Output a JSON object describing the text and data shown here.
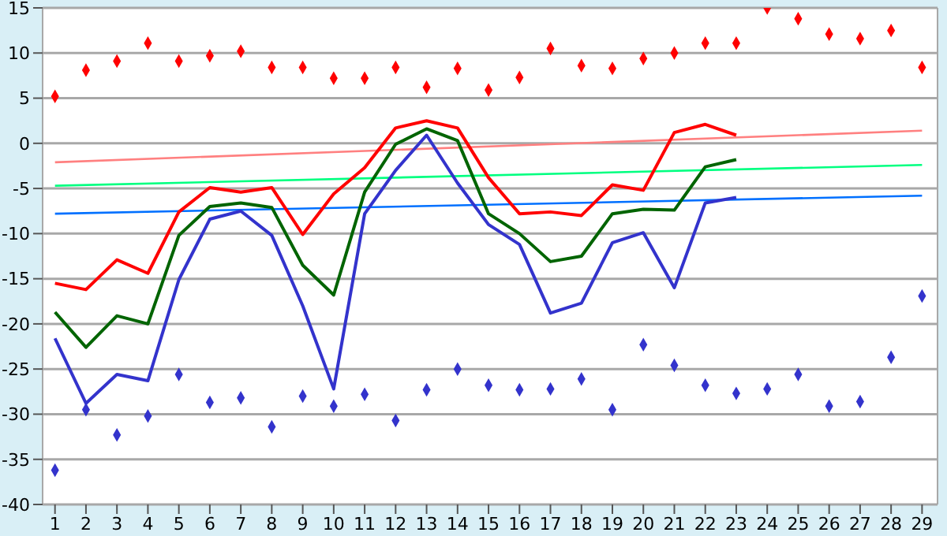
{
  "chart_data": {
    "type": "line",
    "x": [
      1,
      2,
      3,
      4,
      5,
      6,
      7,
      8,
      9,
      10,
      11,
      12,
      13,
      14,
      15,
      16,
      17,
      18,
      19,
      20,
      21,
      22,
      23,
      24,
      25,
      26,
      27,
      28,
      29
    ],
    "xlim": [
      0.6,
      29.5
    ],
    "xticks": [
      1,
      2,
      3,
      4,
      5,
      6,
      7,
      8,
      9,
      10,
      11,
      12,
      13,
      14,
      15,
      16,
      17,
      18,
      19,
      20,
      21,
      22,
      23,
      24,
      25,
      26,
      27,
      28,
      29
    ],
    "ylim": [
      -40,
      15
    ],
    "yticks": [
      -40,
      -35,
      -30,
      -25,
      -20,
      -15,
      -10,
      -5,
      0,
      5,
      10,
      15
    ],
    "grid": "y",
    "marker": "none",
    "line_style": "solid",
    "series": [
      {
        "type": "scatter",
        "marker": "diamond",
        "color": "#ff0000",
        "values": [
          5.2,
          8.1,
          9.1,
          11.1,
          9.1,
          9.7,
          10.2,
          8.4,
          8.4,
          7.2,
          7.2,
          8.4,
          6.2,
          8.3,
          5.9,
          7.3,
          10.5,
          8.6,
          8.3,
          9.4,
          10.0,
          11.1,
          11.1,
          15.0,
          13.8,
          12.1,
          11.6,
          12.5,
          8.4
        ]
      },
      {
        "type": "scatter",
        "marker": "diamond",
        "color": "#3333cc",
        "values": [
          -36.2,
          -29.5,
          -32.3,
          -30.2,
          -25.6,
          -28.7,
          -28.2,
          -31.4,
          -28.0,
          -29.1,
          -27.8,
          -30.7,
          -27.3,
          -25.0,
          -26.8,
          -27.3,
          -27.2,
          -26.1,
          -29.5,
          -22.3,
          -24.6,
          -26.8,
          -27.7,
          -27.2,
          -25.6,
          -29.1,
          -28.6,
          -23.7,
          -16.9
        ]
      },
      {
        "type": "line",
        "color": "#ff8080",
        "values": [
          -2.1,
          null,
          null,
          null,
          null,
          null,
          null,
          null,
          null,
          null,
          null,
          null,
          null,
          null,
          null,
          null,
          null,
          null,
          null,
          null,
          null,
          null,
          null,
          null,
          null,
          null,
          null,
          null,
          1.4
        ]
      },
      {
        "type": "line",
        "color": "#00ff80",
        "values": [
          -4.7,
          null,
          null,
          null,
          null,
          null,
          null,
          null,
          null,
          null,
          null,
          null,
          null,
          null,
          null,
          null,
          null,
          null,
          null,
          null,
          null,
          null,
          null,
          null,
          null,
          null,
          null,
          null,
          -2.4
        ]
      },
      {
        "type": "line",
        "color": "#0070ff",
        "values": [
          -7.8,
          null,
          null,
          null,
          null,
          null,
          null,
          null,
          null,
          null,
          null,
          null,
          null,
          null,
          null,
          null,
          null,
          null,
          null,
          null,
          null,
          null,
          null,
          null,
          null,
          null,
          null,
          null,
          -5.8
        ]
      },
      {
        "type": "line",
        "color": "#ff0000",
        "values": [
          -15.5,
          -16.2,
          -12.9,
          -14.4,
          -7.6,
          -4.9,
          -5.4,
          -4.9,
          -10.1,
          -5.6,
          -2.7,
          1.7,
          2.5,
          1.7,
          -3.8,
          -7.8,
          -7.6,
          -8.0,
          -4.6,
          -5.2,
          1.2,
          2.1,
          0.9,
          null,
          null,
          null,
          null,
          null,
          null
        ]
      },
      {
        "type": "line",
        "color": "#006400",
        "values": [
          -18.7,
          -22.6,
          -19.1,
          -20.0,
          -10.2,
          -7.0,
          -6.6,
          -7.1,
          -13.5,
          -16.8,
          -5.4,
          -0.1,
          1.6,
          0.3,
          -7.8,
          -10.0,
          -13.1,
          -12.5,
          -7.8,
          -7.3,
          -7.4,
          -2.6,
          -1.8,
          null,
          null,
          null,
          null,
          null,
          null
        ]
      },
      {
        "type": "line",
        "color": "#3333cc",
        "values": [
          -21.6,
          -28.8,
          -25.6,
          -26.3,
          -15.1,
          -8.4,
          -7.5,
          -10.2,
          -18.0,
          -27.2,
          -7.8,
          -3.0,
          0.9,
          -4.4,
          -9.0,
          -11.2,
          -18.8,
          -17.7,
          -11.0,
          -9.9,
          -16.0,
          -6.6,
          -6.0,
          null,
          null,
          null,
          null,
          null,
          null
        ]
      }
    ]
  }
}
